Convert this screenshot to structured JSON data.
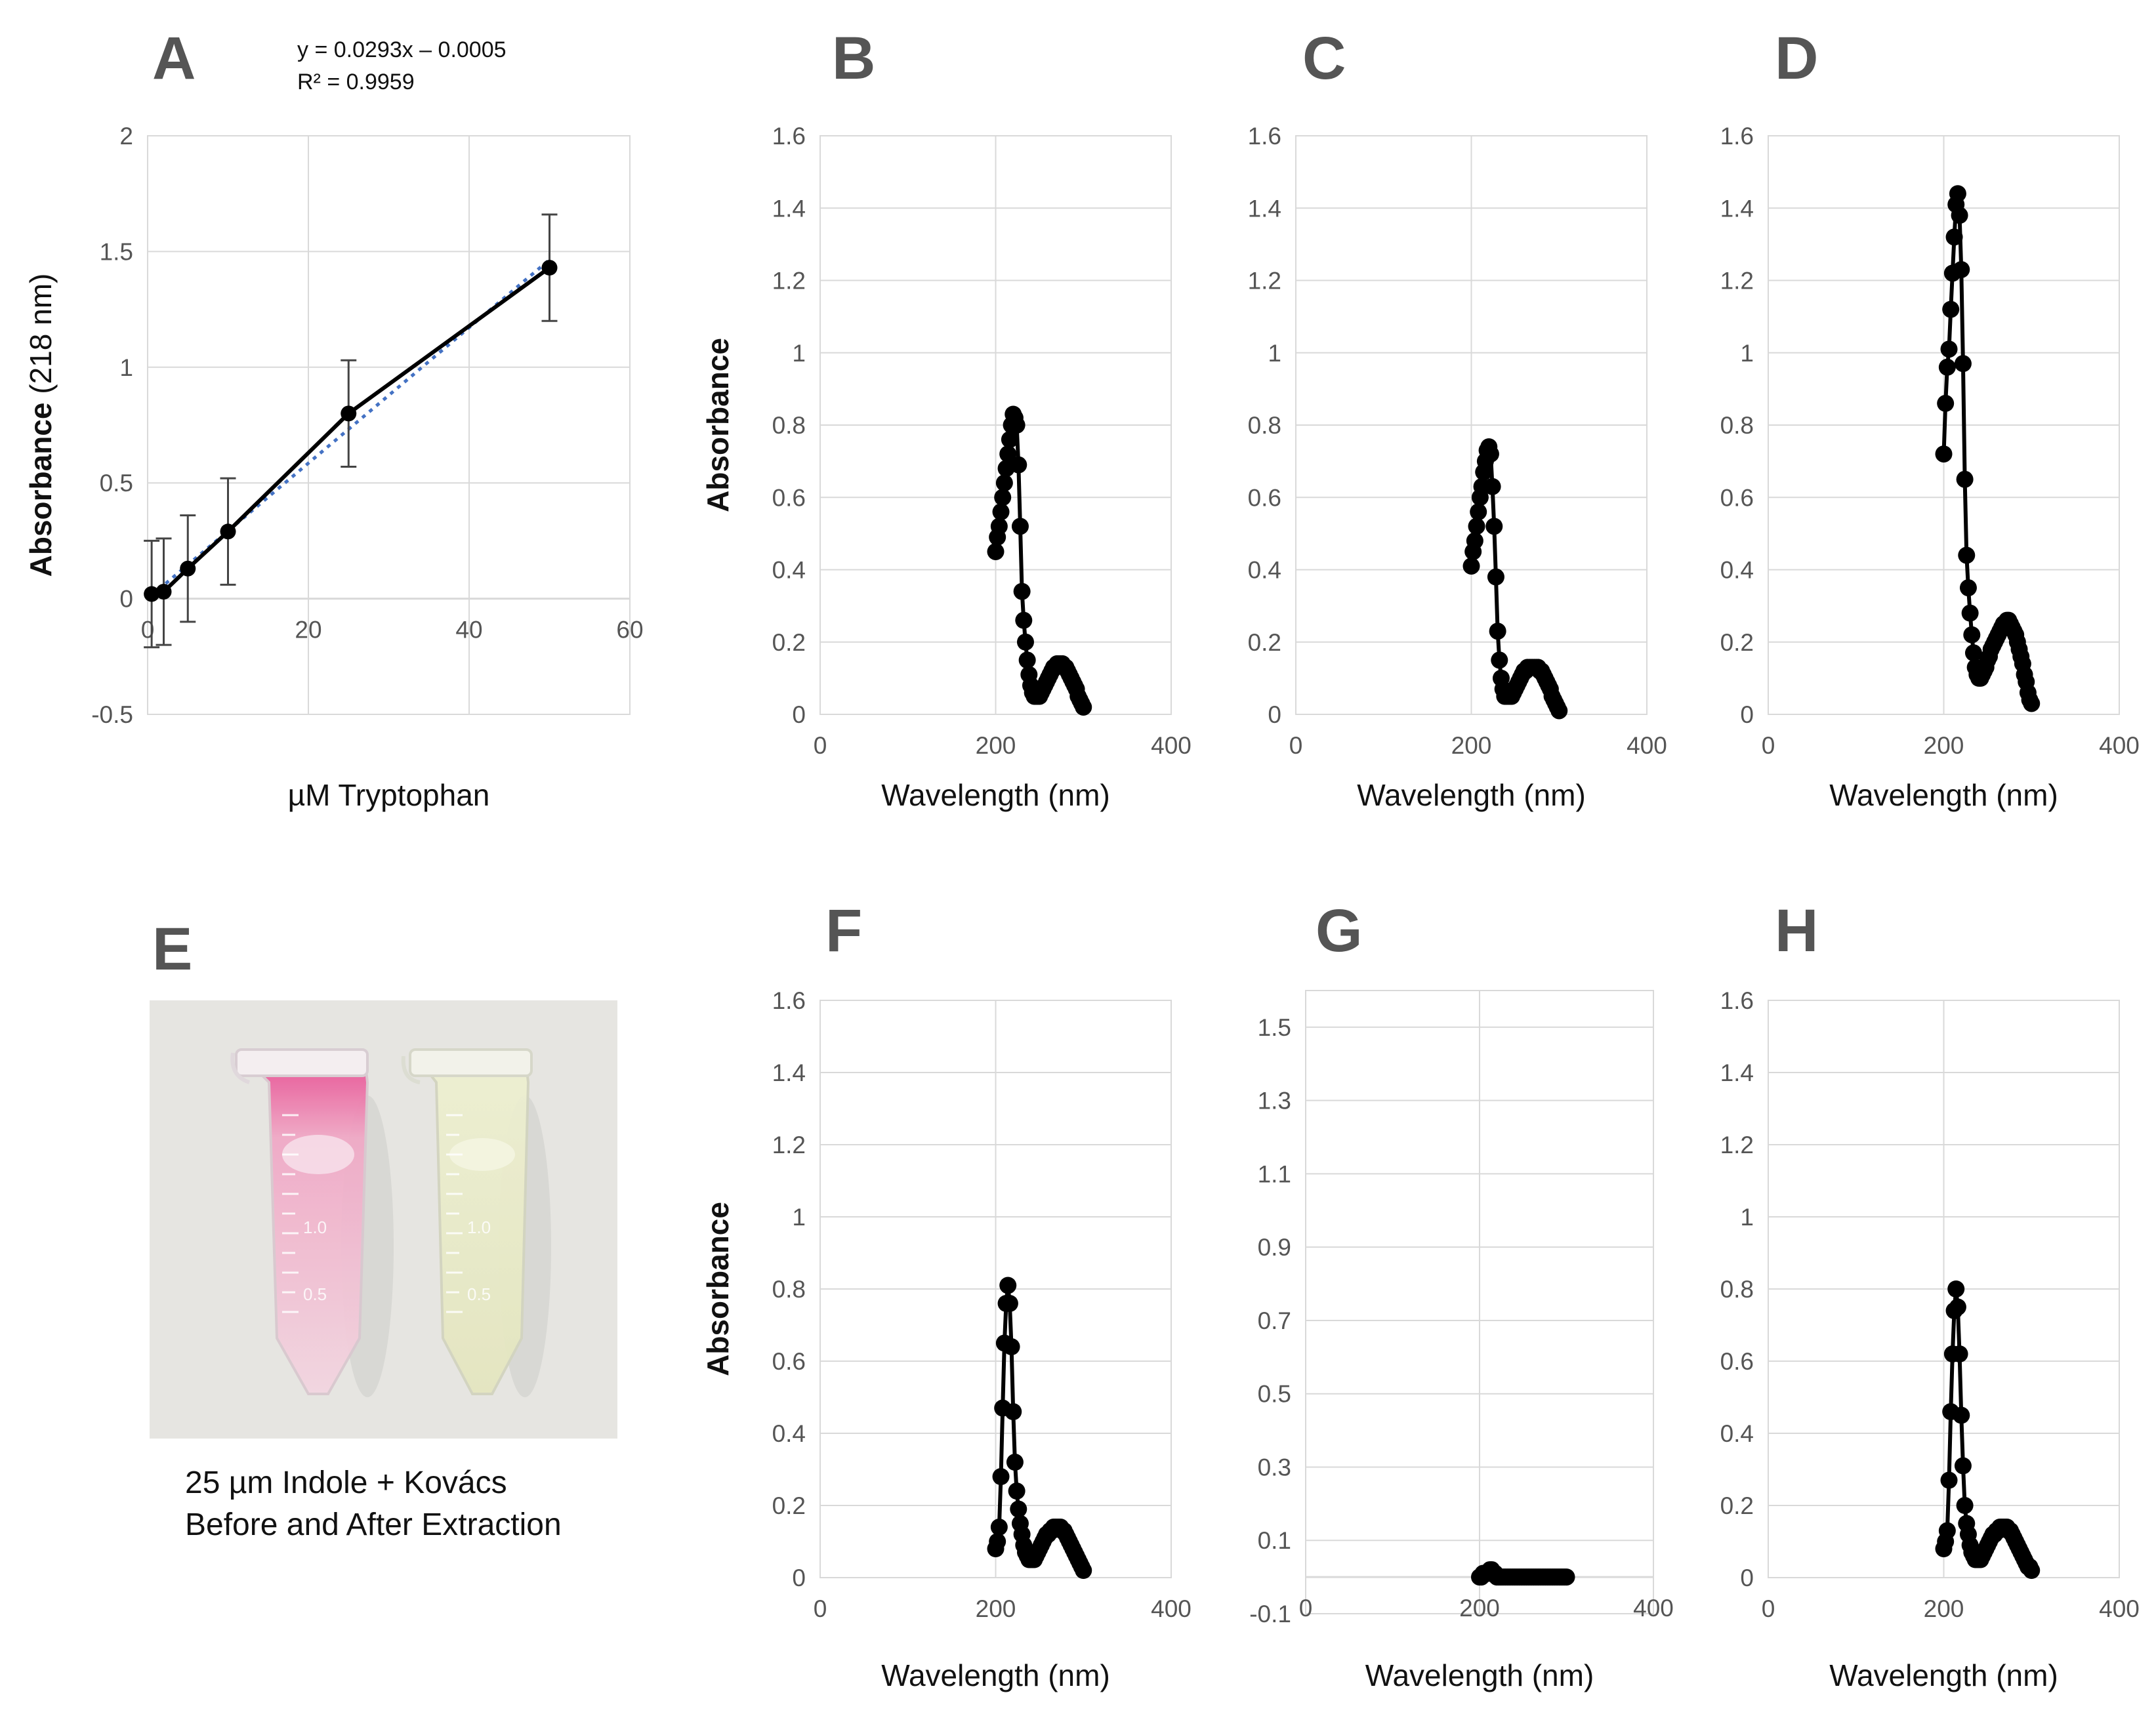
{
  "colors": {
    "series": "#000000",
    "trendline": "#4472c4",
    "grid": "#d9d9d9",
    "letter": "#555555",
    "photo_background": "#e7e6e3",
    "pink_solution": "#e8488f",
    "yellow_solution": "#ecedcc"
  },
  "panel_e": {
    "letter": "E",
    "caption_line1": "25 µm Indole + Kovács",
    "caption_line2": "Before and After Extraction",
    "tube_marks": [
      "1.0",
      "0.5"
    ]
  },
  "chart_data": [
    {
      "id": "A",
      "letter": "A",
      "type": "scatter",
      "title": "",
      "xlabel": "µM Tryptophan",
      "ylabel_main": "Absorbance",
      "ylabel_unit": " (218 nm)",
      "xlim": [
        0,
        60
      ],
      "ylim": [
        -0.5,
        2
      ],
      "xticks": [
        0,
        20,
        40,
        60
      ],
      "yticks": [
        -0.5,
        0,
        0.5,
        1,
        1.5,
        2
      ],
      "equation": "y = 0.0293x – 0.0005",
      "r2": "R² = 0.9959",
      "x": [
        0.5,
        2,
        5,
        10,
        25,
        50
      ],
      "y": [
        0.02,
        0.03,
        0.13,
        0.29,
        0.8,
        1.43
      ],
      "error": [
        0.23,
        0.23,
        0.23,
        0.23,
        0.23,
        0.23
      ],
      "trendline": {
        "slope": 0.0293,
        "intercept": -0.0005
      }
    },
    {
      "id": "B",
      "letter": "B",
      "type": "scatter",
      "xlabel": "Wavelength (nm)",
      "ylabel": "Absorbance",
      "xlim": [
        0,
        400
      ],
      "ylim": [
        0,
        1.6
      ],
      "xticks": [
        0,
        200,
        400
      ],
      "yticks": [
        0,
        0.2,
        0.4,
        0.6,
        0.8,
        1,
        1.2,
        1.4,
        1.6
      ],
      "x": [
        200,
        202,
        204,
        206,
        208,
        210,
        212,
        214,
        216,
        218,
        220,
        222,
        224,
        226,
        228,
        230,
        232,
        234,
        236,
        238,
        240,
        242,
        244,
        246,
        248,
        250,
        252,
        254,
        256,
        258,
        260,
        262,
        264,
        266,
        268,
        270,
        272,
        274,
        276,
        278,
        280,
        282,
        284,
        286,
        288,
        290,
        292,
        294,
        296,
        298,
        300
      ],
      "y": [
        0.45,
        0.49,
        0.52,
        0.56,
        0.6,
        0.64,
        0.68,
        0.72,
        0.76,
        0.8,
        0.83,
        0.82,
        0.8,
        0.69,
        0.52,
        0.34,
        0.26,
        0.2,
        0.15,
        0.11,
        0.08,
        0.06,
        0.05,
        0.05,
        0.05,
        0.05,
        0.06,
        0.07,
        0.08,
        0.09,
        0.1,
        0.11,
        0.12,
        0.13,
        0.13,
        0.14,
        0.14,
        0.14,
        0.14,
        0.13,
        0.13,
        0.12,
        0.11,
        0.1,
        0.09,
        0.08,
        0.07,
        0.05,
        0.04,
        0.03,
        0.02
      ]
    },
    {
      "id": "C",
      "letter": "C",
      "type": "scatter",
      "xlabel": "Wavelength (nm)",
      "ylabel": "",
      "xlim": [
        0,
        400
      ],
      "ylim": [
        0,
        1.6
      ],
      "xticks": [
        0,
        200,
        400
      ],
      "yticks": [
        0,
        0.2,
        0.4,
        0.6,
        0.8,
        1,
        1.2,
        1.4,
        1.6
      ],
      "x": [
        200,
        202,
        204,
        206,
        208,
        210,
        212,
        214,
        216,
        218,
        220,
        222,
        224,
        226,
        228,
        230,
        232,
        234,
        236,
        238,
        240,
        242,
        244,
        246,
        248,
        250,
        252,
        254,
        256,
        258,
        260,
        262,
        264,
        266,
        268,
        270,
        272,
        274,
        276,
        278,
        280,
        282,
        284,
        286,
        288,
        290,
        292,
        294,
        296,
        298,
        300
      ],
      "y": [
        0.41,
        0.45,
        0.48,
        0.52,
        0.56,
        0.6,
        0.63,
        0.67,
        0.7,
        0.73,
        0.74,
        0.72,
        0.63,
        0.52,
        0.38,
        0.23,
        0.15,
        0.1,
        0.07,
        0.05,
        0.05,
        0.05,
        0.05,
        0.05,
        0.06,
        0.07,
        0.08,
        0.09,
        0.1,
        0.11,
        0.12,
        0.12,
        0.13,
        0.13,
        0.13,
        0.13,
        0.13,
        0.13,
        0.13,
        0.12,
        0.12,
        0.11,
        0.1,
        0.09,
        0.08,
        0.07,
        0.05,
        0.04,
        0.03,
        0.02,
        0.01
      ]
    },
    {
      "id": "D",
      "letter": "D",
      "type": "scatter",
      "xlabel": "Wavelength (nm)",
      "ylabel": "",
      "xlim": [
        0,
        400
      ],
      "ylim": [
        0,
        1.6
      ],
      "xticks": [
        0,
        200,
        400
      ],
      "yticks": [
        0,
        0.2,
        0.4,
        0.6,
        0.8,
        1,
        1.2,
        1.4,
        1.6
      ],
      "x": [
        200,
        202,
        204,
        206,
        208,
        210,
        212,
        214,
        216,
        218,
        220,
        222,
        224,
        226,
        228,
        230,
        232,
        234,
        236,
        238,
        240,
        242,
        244,
        246,
        248,
        250,
        252,
        254,
        256,
        258,
        260,
        262,
        264,
        266,
        268,
        270,
        272,
        274,
        276,
        278,
        280,
        282,
        284,
        286,
        288,
        290,
        292,
        294,
        296,
        298,
        300
      ],
      "y": [
        0.72,
        0.86,
        0.96,
        1.01,
        1.12,
        1.22,
        1.32,
        1.41,
        1.44,
        1.38,
        1.23,
        0.97,
        0.65,
        0.44,
        0.35,
        0.28,
        0.22,
        0.17,
        0.13,
        0.11,
        0.1,
        0.1,
        0.11,
        0.12,
        0.13,
        0.15,
        0.16,
        0.18,
        0.19,
        0.2,
        0.21,
        0.22,
        0.23,
        0.24,
        0.25,
        0.25,
        0.26,
        0.26,
        0.25,
        0.24,
        0.23,
        0.22,
        0.2,
        0.18,
        0.16,
        0.14,
        0.11,
        0.09,
        0.06,
        0.04,
        0.03
      ]
    },
    {
      "id": "F",
      "letter": "F",
      "type": "scatter",
      "xlabel": "Wavelength (nm)",
      "ylabel": "Absorbance",
      "xlim": [
        0,
        400
      ],
      "ylim": [
        0,
        1.6
      ],
      "xticks": [
        0,
        200,
        400
      ],
      "yticks": [
        0,
        0.2,
        0.4,
        0.6,
        0.8,
        1,
        1.2,
        1.4,
        1.6
      ],
      "x": [
        200,
        202,
        204,
        206,
        208,
        210,
        212,
        214,
        216,
        218,
        220,
        222,
        224,
        226,
        228,
        230,
        232,
        234,
        236,
        238,
        240,
        242,
        244,
        246,
        248,
        250,
        252,
        254,
        256,
        258,
        260,
        262,
        264,
        266,
        268,
        270,
        272,
        274,
        276,
        278,
        280,
        282,
        284,
        286,
        288,
        290,
        292,
        294,
        296,
        298,
        300
      ],
      "y": [
        0.08,
        0.1,
        0.14,
        0.28,
        0.47,
        0.65,
        0.76,
        0.81,
        0.76,
        0.64,
        0.46,
        0.32,
        0.24,
        0.19,
        0.15,
        0.12,
        0.09,
        0.07,
        0.06,
        0.05,
        0.05,
        0.05,
        0.05,
        0.06,
        0.07,
        0.08,
        0.09,
        0.1,
        0.11,
        0.12,
        0.12,
        0.13,
        0.13,
        0.14,
        0.14,
        0.14,
        0.14,
        0.14,
        0.13,
        0.13,
        0.12,
        0.11,
        0.1,
        0.09,
        0.08,
        0.07,
        0.06,
        0.05,
        0.04,
        0.03,
        0.02
      ]
    },
    {
      "id": "G",
      "letter": "G",
      "type": "scatter",
      "xlabel": "Wavelength (nm)",
      "ylabel": "",
      "xlim": [
        0,
        400
      ],
      "ylim": [
        -0.1,
        1.6
      ],
      "xticks": [
        0,
        200,
        400
      ],
      "yticks": [
        -0.1,
        0.1,
        0.3,
        0.5,
        0.7,
        0.9,
        1.1,
        1.3,
        1.5
      ],
      "x": [
        200,
        202,
        204,
        206,
        208,
        210,
        212,
        214,
        216,
        218,
        220,
        222,
        224,
        226,
        228,
        230,
        232,
        234,
        236,
        238,
        240,
        242,
        244,
        246,
        248,
        250,
        252,
        254,
        256,
        258,
        260,
        262,
        264,
        266,
        268,
        270,
        272,
        274,
        276,
        278,
        280,
        282,
        284,
        286,
        288,
        290,
        292,
        294,
        296,
        298,
        300
      ],
      "y": [
        0.0,
        0.0,
        0.01,
        0.01,
        0.01,
        0.01,
        0.02,
        0.02,
        0.01,
        0.01,
        0.0,
        0.0,
        0.0,
        0.0,
        0.0,
        0.0,
        0.0,
        0.0,
        0.0,
        0.0,
        0.0,
        0.0,
        0.0,
        0.0,
        0.0,
        0.0,
        0.0,
        0.0,
        0.0,
        0.0,
        0.0,
        0.0,
        0.0,
        0.0,
        0.0,
        0.0,
        0.0,
        0.0,
        0.0,
        0.0,
        0.0,
        0.0,
        0.0,
        0.0,
        0.0,
        0.0,
        0.0,
        0.0,
        0.0,
        0.0,
        0.0
      ]
    },
    {
      "id": "H",
      "letter": "H",
      "type": "scatter",
      "xlabel": "Wavelength (nm)",
      "ylabel": "",
      "xlim": [
        0,
        400
      ],
      "ylim": [
        0,
        1.6
      ],
      "xticks": [
        0,
        200,
        400
      ],
      "yticks": [
        0,
        0.2,
        0.4,
        0.6,
        0.8,
        1,
        1.2,
        1.4,
        1.6
      ],
      "x": [
        200,
        202,
        204,
        206,
        208,
        210,
        212,
        214,
        216,
        218,
        220,
        222,
        224,
        226,
        228,
        230,
        232,
        234,
        236,
        238,
        240,
        242,
        244,
        246,
        248,
        250,
        252,
        254,
        256,
        258,
        260,
        262,
        264,
        266,
        268,
        270,
        272,
        274,
        276,
        278,
        280,
        282,
        284,
        286,
        288,
        290,
        292,
        294,
        296,
        298,
        300
      ],
      "y": [
        0.08,
        0.1,
        0.13,
        0.27,
        0.46,
        0.62,
        0.74,
        0.8,
        0.75,
        0.62,
        0.45,
        0.31,
        0.2,
        0.15,
        0.12,
        0.09,
        0.07,
        0.06,
        0.05,
        0.05,
        0.05,
        0.05,
        0.06,
        0.07,
        0.08,
        0.09,
        0.1,
        0.11,
        0.12,
        0.12,
        0.13,
        0.13,
        0.14,
        0.14,
        0.14,
        0.14,
        0.14,
        0.13,
        0.13,
        0.12,
        0.11,
        0.1,
        0.09,
        0.08,
        0.07,
        0.06,
        0.05,
        0.04,
        0.03,
        0.03,
        0.02
      ]
    }
  ]
}
